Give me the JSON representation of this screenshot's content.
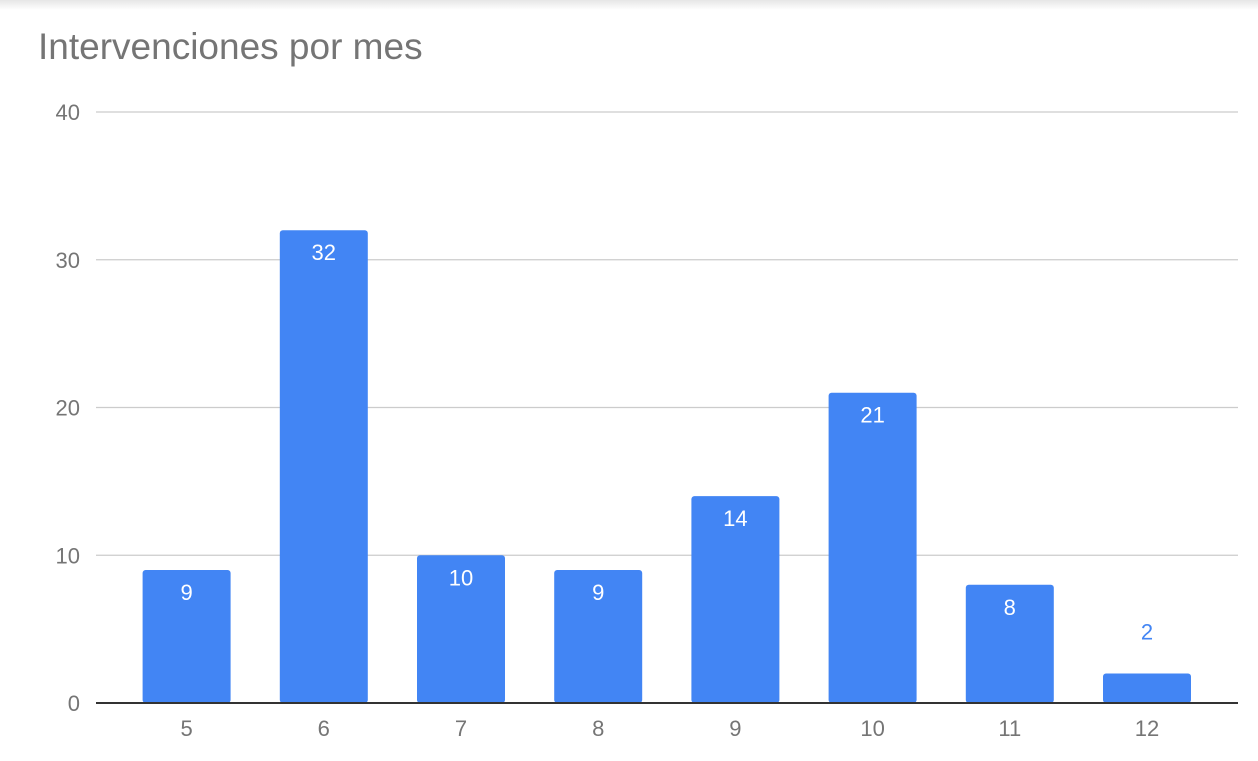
{
  "chart_data": {
    "type": "bar",
    "title": "Intervenciones por mes",
    "xlabel": "",
    "ylabel": "",
    "categories": [
      "5",
      "6",
      "7",
      "8",
      "9",
      "10",
      "11",
      "12"
    ],
    "values": [
      9,
      32,
      10,
      9,
      14,
      21,
      8,
      2
    ],
    "ylim": [
      0,
      40
    ],
    "yticks": [
      "0",
      "10",
      "20",
      "30",
      "40"
    ],
    "grid": true,
    "legend": "none",
    "colors": {
      "bar": "#4285f4",
      "label_inside": "#ffffff",
      "label_outside": "#4285f4",
      "grid": "#cccccc",
      "axis": "#333333",
      "text": "#757575"
    }
  }
}
